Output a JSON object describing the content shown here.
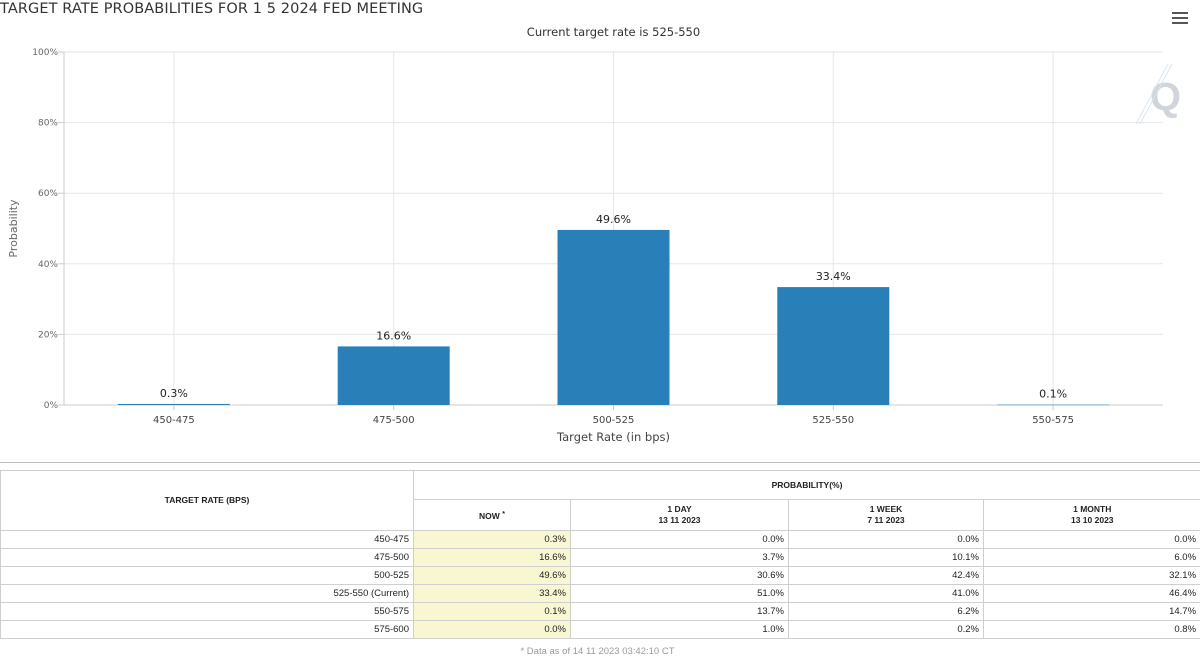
{
  "page": {
    "title": "TARGET RATE PROBABILITIES FOR 1 5 2024 FED MEETING"
  },
  "icons": {
    "menu": "hamburger-menu-icon",
    "watermark": "q-logo-icon"
  },
  "colors": {
    "bar": "#2980b9",
    "grid": "#e6e6e6",
    "now_column": "#f8f7d2"
  },
  "chart_data": {
    "type": "bar",
    "subtitle": "Current target rate is 525-550",
    "categories": [
      "450-475",
      "475-500",
      "500-525",
      "525-550",
      "550-575"
    ],
    "values": [
      0.3,
      16.6,
      49.6,
      33.4,
      0.1
    ],
    "data_labels": [
      "0.3%",
      "16.6%",
      "49.6%",
      "33.4%",
      "0.1%"
    ],
    "xlabel": "Target Rate (in bps)",
    "ylabel": "Probability",
    "ylim": [
      0,
      100
    ],
    "yticks": [
      0,
      20,
      40,
      60,
      80,
      100
    ],
    "ytick_labels": [
      "0%",
      "20%",
      "40%",
      "60%",
      "80%",
      "100%"
    ],
    "grid": true,
    "legend": "none"
  },
  "table": {
    "rate_header": "TARGET RATE (BPS)",
    "prob_header": "PROBABILITY(%)",
    "cols": [
      {
        "label": "NOW",
        "date": "",
        "note": "*"
      },
      {
        "label": "1 DAY",
        "date": "13 11 2023"
      },
      {
        "label": "1 WEEK",
        "date": "7 11 2023"
      },
      {
        "label": "1 MONTH",
        "date": "13 10 2023"
      }
    ],
    "rows": [
      {
        "rate": "450-475",
        "values": [
          "0.3%",
          "0.0%",
          "0.0%",
          "0.0%"
        ]
      },
      {
        "rate": "475-500",
        "values": [
          "16.6%",
          "3.7%",
          "10.1%",
          "6.0%"
        ]
      },
      {
        "rate": "500-525",
        "values": [
          "49.6%",
          "30.6%",
          "42.4%",
          "32.1%"
        ]
      },
      {
        "rate": "525-550 (Current)",
        "values": [
          "33.4%",
          "51.0%",
          "41.0%",
          "46.4%"
        ]
      },
      {
        "rate": "550-575",
        "values": [
          "0.1%",
          "13.7%",
          "6.2%",
          "14.7%"
        ]
      },
      {
        "rate": "575-600",
        "values": [
          "0.0%",
          "1.0%",
          "0.2%",
          "0.8%"
        ]
      }
    ],
    "footnote": "* Data as of 14 11 2023 03:42:10 CT"
  }
}
